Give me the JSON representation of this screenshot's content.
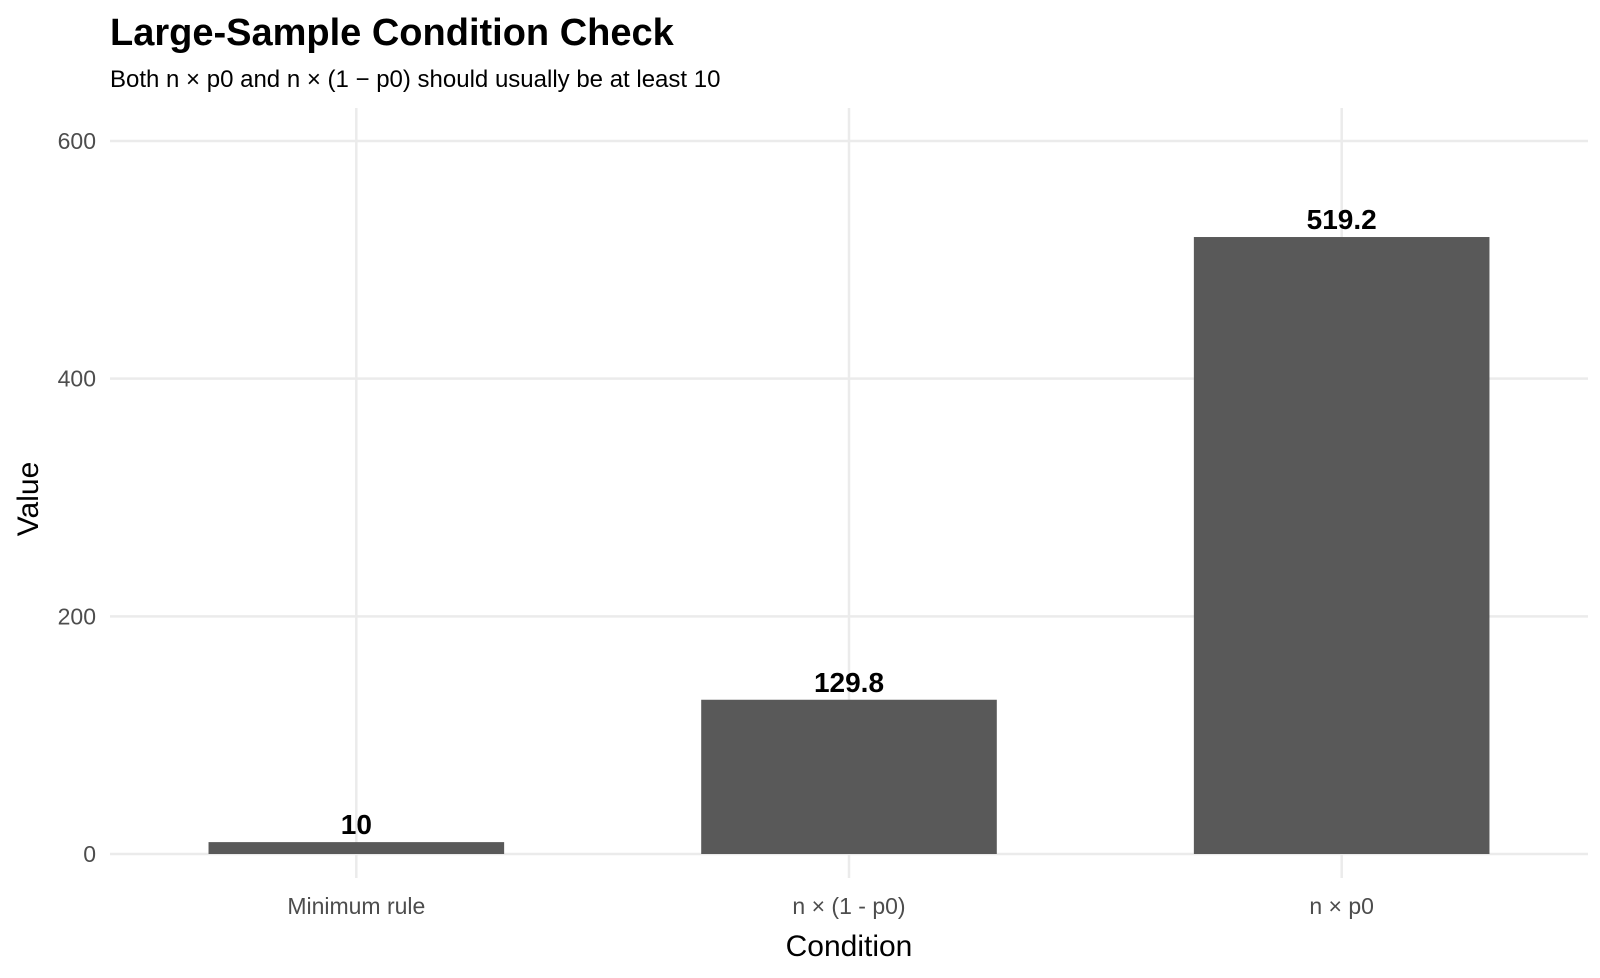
{
  "chart_data": {
    "type": "bar",
    "title": "Large-Sample Condition Check",
    "subtitle": "Both n × p0 and n × (1 − p0) should usually be at least 10",
    "xlabel": "Condition",
    "ylabel": "Value",
    "categories": [
      "Minimum rule",
      "n × (1 - p0)",
      "n × p0"
    ],
    "values": [
      10,
      129.8,
      519.2
    ],
    "value_labels": [
      "10",
      "129.8",
      "519.2"
    ],
    "ylim": [
      0,
      600
    ],
    "yticks": [
      0,
      200,
      400,
      600
    ],
    "ytick_labels": [
      "0",
      "200",
      "400",
      "600"
    ],
    "bar_color": "#595959",
    "grid": true,
    "legend": "none"
  }
}
